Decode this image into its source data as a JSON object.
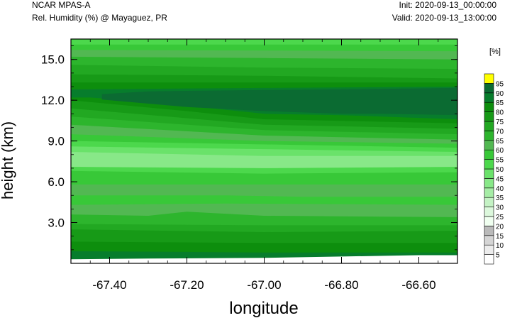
{
  "header": {
    "model": "NCAR MPAS-A",
    "field": "Rel. Humidity (%) @ Mayaguez, PR",
    "init": "Init: 2020-09-13_00:00:00",
    "valid": "Valid: 2020-09-13_13:00:00"
  },
  "chart_data": {
    "type": "heatmap",
    "title": "Rel. Humidity (%) @ Mayaguez, PR",
    "xlabel": "longitude",
    "ylabel": "height (km)",
    "xlim": [
      -67.5,
      -66.5
    ],
    "ylim": [
      0,
      16.5
    ],
    "x_ticks": [
      -67.4,
      -67.2,
      -67.0,
      -66.8,
      -66.6
    ],
    "x_tick_labels": [
      "-67.40",
      "-67.20",
      "-67.00",
      "-66.80",
      "-66.60"
    ],
    "y_ticks": [
      3,
      6,
      9,
      12,
      15
    ],
    "y_tick_labels": [
      "3.0",
      "6.0",
      "9.0",
      "12.0",
      "15.0"
    ],
    "colorbar": {
      "unit_label": "[%]",
      "levels": [
        5,
        10,
        15,
        20,
        25,
        30,
        35,
        40,
        45,
        50,
        55,
        60,
        65,
        70,
        75,
        80,
        85,
        90,
        95
      ],
      "colors": [
        "#ffffff",
        "#ececec",
        "#d5d5d5",
        "#bababa",
        "#f0fff0",
        "#dcf8dc",
        "#c4f2c4",
        "#a6eda6",
        "#88e888",
        "#6ae26a",
        "#4cd84c",
        "#38c838",
        "#52b852",
        "#2db52d",
        "#22a822",
        "#179a17",
        "#0d8e0d",
        "#077d2c",
        "#0b6b32",
        "#ffff00"
      ]
    },
    "layers": [
      {
        "rh": 55,
        "profile": [
          [
            -67.5,
            16.5
          ],
          [
            -66.5,
            16.5
          ]
        ]
      },
      {
        "rh": 60,
        "profile": [
          [
            -67.5,
            16.1
          ],
          [
            -66.5,
            16.1
          ]
        ]
      },
      {
        "rh": 65,
        "profile": [
          [
            -67.5,
            15.7
          ],
          [
            -66.5,
            15.6
          ]
        ]
      },
      {
        "rh": 70,
        "profile": [
          [
            -67.5,
            15.2
          ],
          [
            -67.0,
            15.1
          ],
          [
            -66.5,
            15.0
          ]
        ]
      },
      {
        "rh": 75,
        "profile": [
          [
            -67.5,
            14.6
          ],
          [
            -67.0,
            14.4
          ],
          [
            -66.5,
            14.3
          ]
        ]
      },
      {
        "rh": 80,
        "profile": [
          [
            -67.5,
            13.9
          ],
          [
            -67.0,
            13.8
          ],
          [
            -66.5,
            13.6
          ]
        ]
      },
      {
        "rh": 85,
        "profile": [
          [
            -67.5,
            13.3
          ],
          [
            -67.0,
            13.3
          ],
          [
            -66.5,
            13.3
          ]
        ]
      },
      {
        "rh": 90,
        "profile": [
          [
            -67.5,
            12.8
          ],
          [
            -67.0,
            12.9
          ],
          [
            -66.5,
            13.0
          ]
        ]
      },
      {
        "rh": 85,
        "profile": [
          [
            -67.5,
            12.2
          ],
          [
            -67.45,
            12.2
          ],
          [
            -67.3,
            11.9
          ],
          [
            -67.1,
            11.3
          ],
          [
            -67.0,
            11.0
          ],
          [
            -66.8,
            10.9
          ],
          [
            -66.6,
            10.7
          ],
          [
            -66.5,
            10.6
          ]
        ]
      },
      {
        "rh": 80,
        "profile": [
          [
            -67.5,
            12.0
          ],
          [
            -67.2,
            11.2
          ],
          [
            -67.0,
            10.6
          ],
          [
            -66.5,
            10.3
          ]
        ]
      },
      {
        "rh": 75,
        "profile": [
          [
            -67.5,
            11.4
          ],
          [
            -67.0,
            10.2
          ],
          [
            -66.5,
            9.9
          ]
        ]
      },
      {
        "rh": 70,
        "profile": [
          [
            -67.5,
            10.8
          ],
          [
            -67.0,
            9.8
          ],
          [
            -66.5,
            9.5
          ]
        ]
      },
      {
        "rh": 65,
        "profile": [
          [
            -67.5,
            10.2
          ],
          [
            -67.0,
            9.4
          ],
          [
            -66.5,
            9.1
          ]
        ]
      },
      {
        "rh": 60,
        "profile": [
          [
            -67.5,
            9.5
          ],
          [
            -67.0,
            9.0
          ],
          [
            -66.5,
            8.8
          ]
        ]
      },
      {
        "rh": 55,
        "profile": [
          [
            -67.5,
            9.0
          ],
          [
            -66.5,
            8.5
          ]
        ]
      },
      {
        "rh": 50,
        "profile": [
          [
            -67.5,
            8.6
          ],
          [
            -66.5,
            8.2
          ]
        ]
      },
      {
        "rh": 45,
        "profile": [
          [
            -67.5,
            8.2
          ],
          [
            -67.0,
            7.9
          ],
          [
            -66.5,
            7.9
          ]
        ]
      },
      {
        "rh": 55,
        "profile": [
          [
            -67.5,
            7.1
          ],
          [
            -67.0,
            7.0
          ],
          [
            -66.5,
            7.1
          ]
        ]
      },
      {
        "rh": 60,
        "profile": [
          [
            -67.5,
            6.8
          ],
          [
            -67.0,
            6.6
          ],
          [
            -66.5,
            6.7
          ]
        ]
      },
      {
        "rh": 65,
        "profile": [
          [
            -67.5,
            5.8
          ],
          [
            -66.5,
            5.8
          ]
        ]
      },
      {
        "rh": 60,
        "profile": [
          [
            -67.5,
            5.0
          ],
          [
            -67.3,
            5.0
          ],
          [
            -67.1,
            5.0
          ],
          [
            -66.9,
            4.9
          ],
          [
            -66.7,
            4.9
          ],
          [
            -66.5,
            4.9
          ]
        ]
      },
      {
        "rh": 65,
        "profile": [
          [
            -67.5,
            4.3
          ],
          [
            -67.1,
            4.4
          ],
          [
            -66.5,
            4.3
          ]
        ]
      },
      {
        "rh": 70,
        "profile": [
          [
            -67.5,
            3.6
          ],
          [
            -67.3,
            3.5
          ],
          [
            -67.2,
            3.8
          ],
          [
            -67.0,
            3.5
          ],
          [
            -66.5,
            3.4
          ]
        ]
      },
      {
        "rh": 75,
        "profile": [
          [
            -67.5,
            2.9
          ],
          [
            -67.0,
            2.8
          ],
          [
            -66.5,
            2.8
          ]
        ]
      },
      {
        "rh": 80,
        "profile": [
          [
            -67.5,
            2.5
          ],
          [
            -67.0,
            2.3
          ],
          [
            -66.5,
            2.4
          ]
        ]
      },
      {
        "rh": 85,
        "profile": [
          [
            -67.5,
            1.6
          ],
          [
            -67.0,
            1.5
          ],
          [
            -66.5,
            1.5
          ]
        ]
      },
      {
        "rh": 90,
        "profile": [
          [
            -67.5,
            0.9
          ],
          [
            -67.0,
            0.8
          ],
          [
            -66.5,
            0.8
          ]
        ]
      },
      {
        "rh": 5,
        "profile": [
          [
            -67.5,
            0.3
          ],
          [
            -67.3,
            0.35
          ],
          [
            -67.0,
            0.4
          ],
          [
            -66.8,
            0.5
          ],
          [
            -66.6,
            0.6
          ],
          [
            -66.5,
            0.6
          ]
        ]
      }
    ],
    "saturated_region": {
      "rh": 95,
      "outline": [
        [
          -67.42,
          12.45
        ],
        [
          -67.3,
          12.65
        ],
        [
          -67.0,
          12.75
        ],
        [
          -66.8,
          12.8
        ],
        [
          -66.5,
          12.9
        ],
        [
          -66.5,
          10.9
        ],
        [
          -66.7,
          11.0
        ],
        [
          -66.8,
          11.0
        ],
        [
          -67.0,
          11.2
        ],
        [
          -67.2,
          11.5
        ],
        [
          -67.42,
          12.05
        ]
      ]
    }
  }
}
